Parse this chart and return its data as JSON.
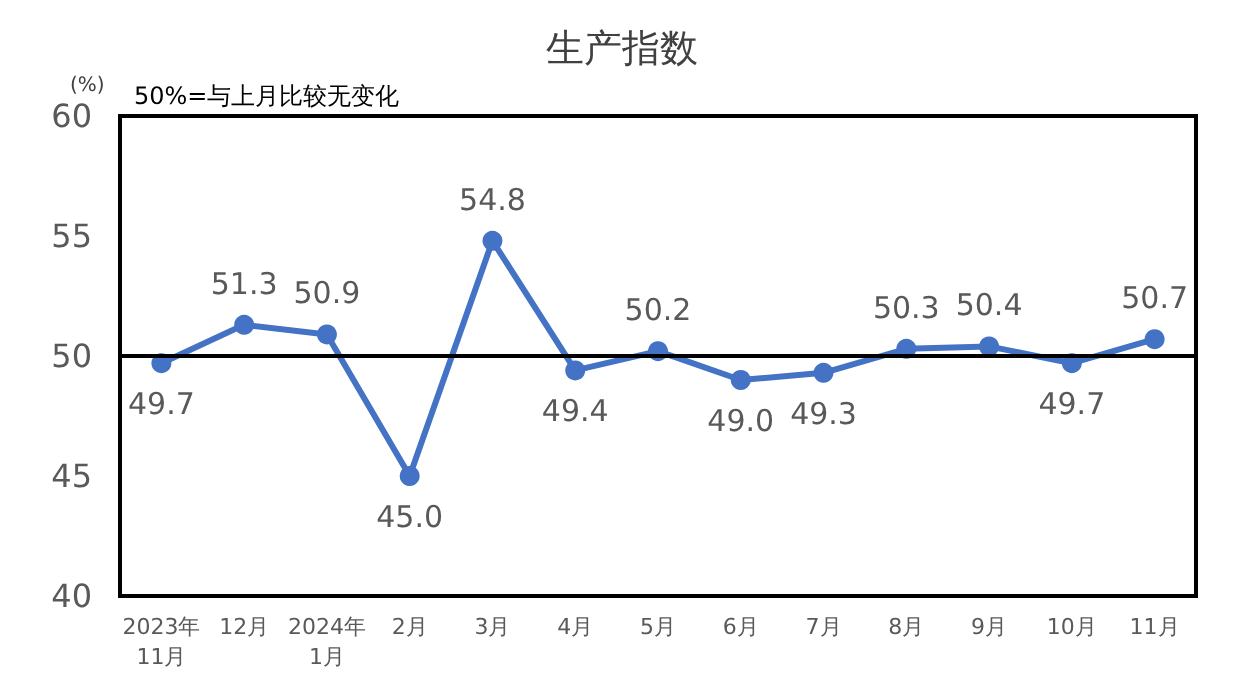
{
  "chart_data": {
    "type": "line",
    "title": "生产指数",
    "ylabel": "(%)",
    "annotations": [
      "50%=与上月比较无变化"
    ],
    "categories": [
      "2023年\n11月",
      "12月",
      "2024年\n1月",
      "2月",
      "3月",
      "4月",
      "5月",
      "6月",
      "7月",
      "8月",
      "9月",
      "10月",
      "11月"
    ],
    "series": [
      {
        "color": "#4472c4",
        "values": [
          49.7,
          51.3,
          50.9,
          45.0,
          54.8,
          49.4,
          50.2,
          49.0,
          49.3,
          50.3,
          50.4,
          49.7,
          50.7
        ]
      }
    ],
    "value_labels": [
      "49.7",
      "51.3",
      "50.9",
      "45.0",
      "54.8",
      "49.4",
      "50.2",
      "49.0",
      "49.3",
      "50.3",
      "50.4",
      "49.7",
      "50.7"
    ],
    "ylim": [
      40,
      60
    ],
    "yticks": [
      40,
      45,
      50,
      55,
      60
    ],
    "ref_lines": [
      {
        "axis": "y",
        "value": 50,
        "color": "#000000"
      }
    ],
    "grid": false,
    "marker": "circle",
    "line_style": "solid"
  }
}
